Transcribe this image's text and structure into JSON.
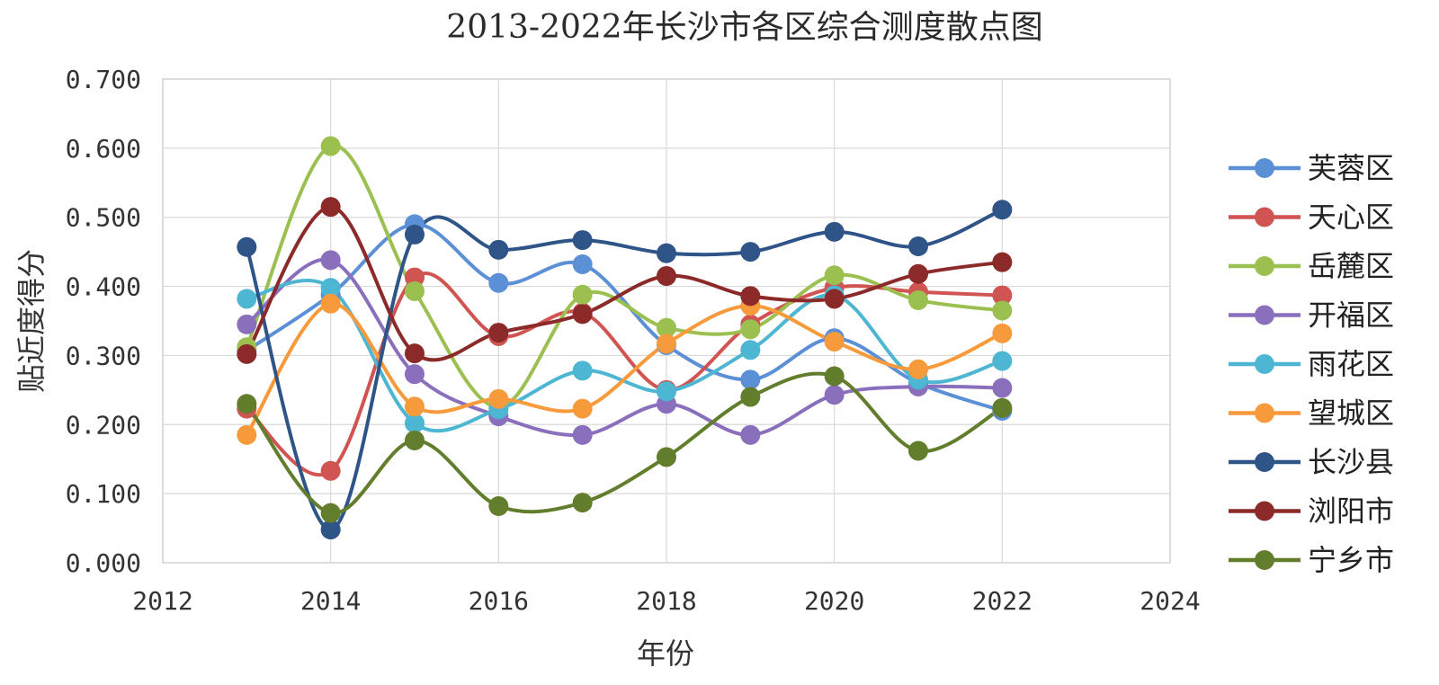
{
  "chart_data": {
    "type": "scatter",
    "title": "2013-2022年长沙市各区综合测度散点图",
    "xlabel": "年份",
    "ylabel": "贴近度得分",
    "xlim": [
      2012,
      2024
    ],
    "ylim": [
      0,
      0.7
    ],
    "x_ticks": [
      "2012",
      "2014",
      "2016",
      "2018",
      "2020",
      "2022",
      "2024"
    ],
    "y_ticks": [
      "0.000",
      "0.100",
      "0.200",
      "0.300",
      "0.400",
      "0.500",
      "0.600",
      "0.700"
    ],
    "grid": true,
    "smooth_lines": true,
    "legend_position": "right",
    "x": [
      2013,
      2014,
      2015,
      2016,
      2017,
      2018,
      2019,
      2020,
      2021,
      2022
    ],
    "series": [
      {
        "name": "芙蓉区",
        "color": "#5b8fd6",
        "values": [
          0.307,
          0.388,
          0.49,
          0.405,
          0.432,
          0.315,
          0.265,
          0.325,
          0.26,
          0.22
        ]
      },
      {
        "name": "天心区",
        "color": "#d05452",
        "values": [
          0.223,
          0.133,
          0.413,
          0.328,
          0.362,
          0.25,
          0.345,
          0.398,
          0.392,
          0.387
        ]
      },
      {
        "name": "岳麓区",
        "color": "#9bc050",
        "values": [
          0.312,
          0.603,
          0.393,
          0.225,
          0.388,
          0.34,
          0.338,
          0.416,
          0.38,
          0.365
        ]
      },
      {
        "name": "开福区",
        "color": "#8a6fbd",
        "values": [
          0.345,
          0.438,
          0.273,
          0.212,
          0.185,
          0.23,
          0.185,
          0.243,
          0.255,
          0.253
        ]
      },
      {
        "name": "雨花区",
        "color": "#4db6d2",
        "values": [
          0.382,
          0.398,
          0.202,
          0.222,
          0.278,
          0.248,
          0.308,
          0.387,
          0.265,
          0.292
        ]
      },
      {
        "name": "望城区",
        "color": "#f79a3c",
        "values": [
          0.185,
          0.375,
          0.226,
          0.237,
          0.223,
          0.317,
          0.372,
          0.32,
          0.28,
          0.332
        ]
      },
      {
        "name": "长沙县",
        "color": "#2f5487",
        "values": [
          0.457,
          0.048,
          0.475,
          0.453,
          0.467,
          0.448,
          0.45,
          0.479,
          0.458,
          0.511
        ]
      },
      {
        "name": "浏阳市",
        "color": "#8c2a2a",
        "values": [
          0.302,
          0.515,
          0.303,
          0.333,
          0.36,
          0.415,
          0.386,
          0.382,
          0.418,
          0.435
        ]
      },
      {
        "name": "宁乡市",
        "color": "#627e2c",
        "values": [
          0.23,
          0.072,
          0.177,
          0.082,
          0.087,
          0.153,
          0.24,
          0.27,
          0.162,
          0.224
        ]
      }
    ]
  }
}
